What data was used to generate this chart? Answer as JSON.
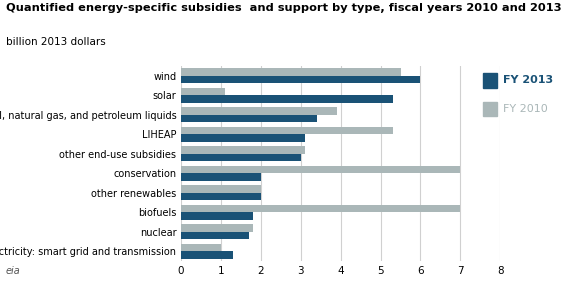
{
  "title": "Quantified energy-specific subsidies  and support by type, fiscal years 2010 and 2013",
  "subtitle": "billion 2013 dollars",
  "categories": [
    "wind",
    "solar",
    "coal, natural gas, and petroleum liquids",
    "LIHEAP",
    "other end-use subsidies",
    "conservation",
    "other renewables",
    "biofuels",
    "nuclear",
    "electricity: smart grid and transmission"
  ],
  "fy2013": [
    6.0,
    5.3,
    3.4,
    3.1,
    3.0,
    2.0,
    2.0,
    1.8,
    1.7,
    1.3
  ],
  "fy2010": [
    5.5,
    1.1,
    3.9,
    5.3,
    3.1,
    7.0,
    2.0,
    7.0,
    1.8,
    1.0
  ],
  "color_2013": "#1a5276",
  "color_2010": "#aab7b8",
  "legend_color_2013": "#1a5276",
  "legend_color_2010": "#aab7b8",
  "xlim": [
    0,
    8
  ],
  "xticks": [
    0,
    1,
    2,
    3,
    4,
    5,
    6,
    7,
    8
  ],
  "legend_2013": "FY 2013",
  "legend_2010": "FY 2010",
  "bar_height": 0.38,
  "background_color": "#ffffff",
  "grid_color": "#d0d0d0"
}
